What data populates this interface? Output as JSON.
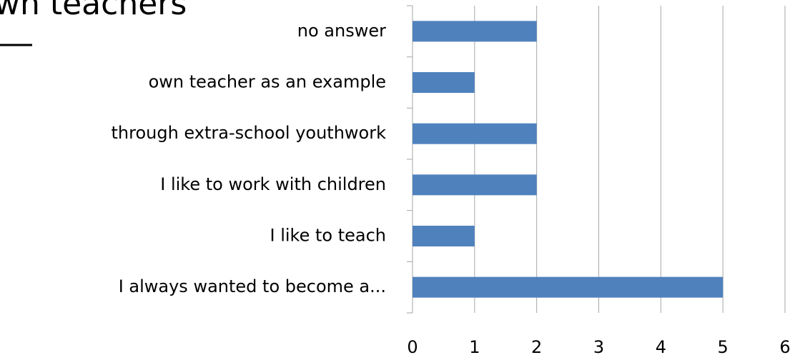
{
  "chart_data": {
    "type": "bar",
    "orientation": "horizontal",
    "title": "wn teachers",
    "categories": [
      "no answer",
      "own teacher as an example",
      "through extra-school youthwork",
      "I like to work with children",
      "I like to teach",
      "I always wanted to become a..."
    ],
    "values": [
      2,
      1,
      2,
      2,
      1,
      5
    ],
    "color": "#4f81bd",
    "xlim": [
      0,
      6
    ],
    "xticks": [
      0,
      1,
      2,
      3,
      4,
      5,
      6
    ],
    "grid": true
  }
}
